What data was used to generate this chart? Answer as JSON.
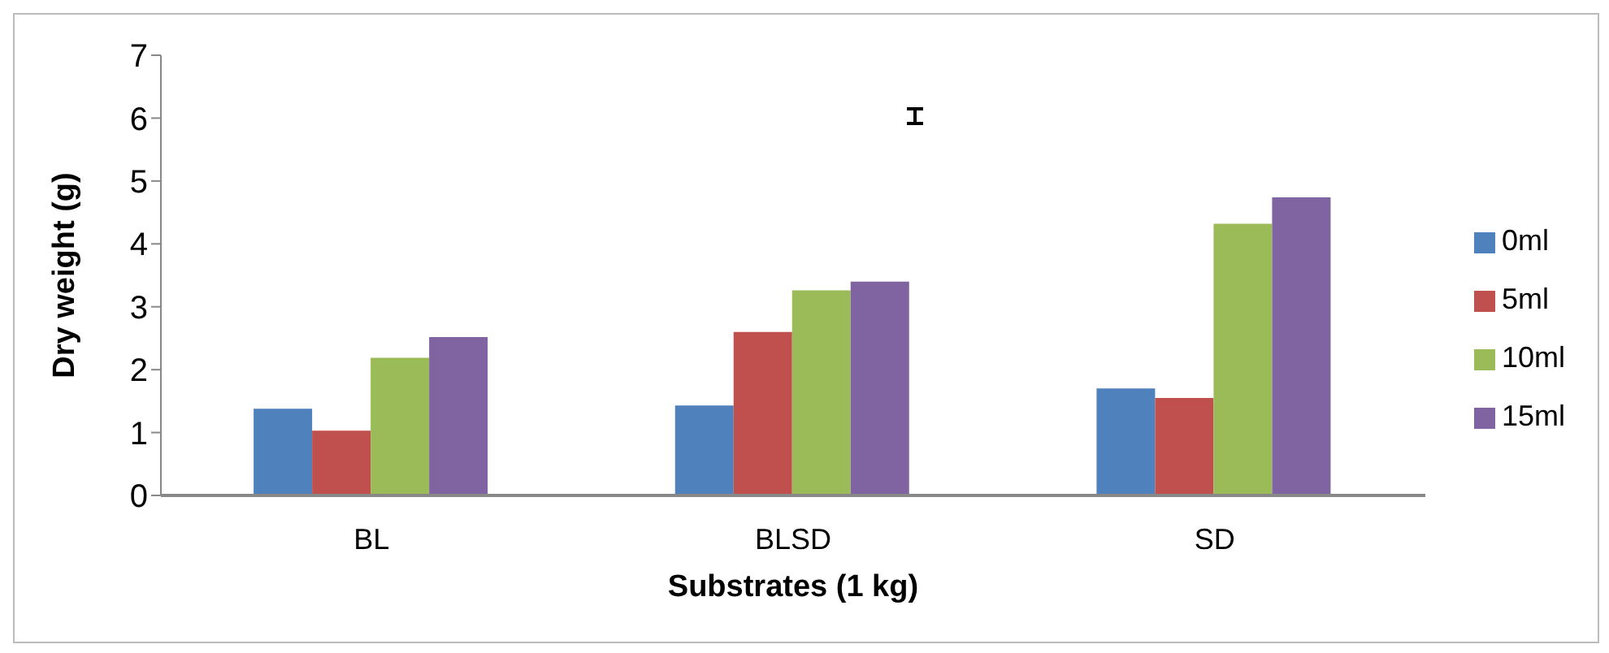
{
  "chart_data": {
    "type": "bar",
    "xlabel": "Substrates (1 kg)",
    "ylabel": "Dry weight (g)",
    "categories": [
      "BL",
      "BLSD",
      "SD"
    ],
    "series": [
      {
        "name": "0ml",
        "color": "#4f81bd",
        "values": [
          1.38,
          1.43,
          1.7
        ]
      },
      {
        "name": "5ml",
        "color": "#c0504d",
        "values": [
          1.03,
          2.6,
          1.55
        ]
      },
      {
        "name": "10ml",
        "color": "#9bbb59",
        "values": [
          2.19,
          3.26,
          4.32
        ]
      },
      {
        "name": "15ml",
        "color": "#8064a2",
        "values": [
          2.52,
          3.4,
          4.74
        ]
      }
    ],
    "ylim": [
      0,
      7
    ],
    "yticks": [
      0,
      1,
      2,
      3,
      4,
      5,
      6,
      7
    ],
    "grid": false,
    "legend": "right"
  }
}
